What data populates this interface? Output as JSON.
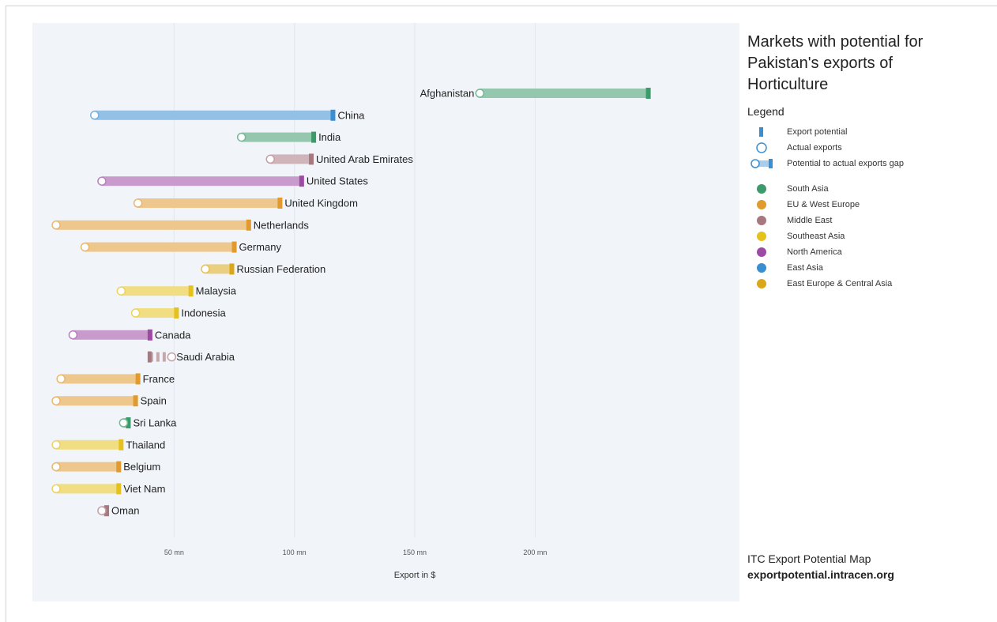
{
  "chart_data": {
    "type": "bar",
    "title": "Markets with potential for Pakistan's exports of Horticulture",
    "xlabel": "Export in $",
    "ylabel": "",
    "xlim": [
      0,
      250
    ],
    "x_ticks": [
      50,
      100,
      150,
      200
    ],
    "x_tick_labels": [
      "50 mn",
      "100 mn",
      "150 mn",
      "200 mn"
    ],
    "grid": true,
    "legend_position": "right",
    "series_fields": [
      "potential",
      "actual"
    ],
    "categories": [
      "Afghanistan",
      "China",
      "India",
      "United Arab Emirates",
      "United States",
      "United Kingdom",
      "Netherlands",
      "Germany",
      "Russian Federation",
      "Malaysia",
      "Indonesia",
      "Canada",
      "Saudi Arabia",
      "France",
      "Spain",
      "Sri Lanka",
      "Thailand",
      "Belgium",
      "Viet Nam",
      "Oman"
    ],
    "rows": [
      {
        "country": "Afghanistan",
        "region": "South Asia",
        "potential": 247,
        "actual": 177
      },
      {
        "country": "China",
        "region": "East Asia",
        "potential": 116,
        "actual": 17
      },
      {
        "country": "India",
        "region": "South Asia",
        "potential": 108,
        "actual": 78
      },
      {
        "country": "United Arab Emirates",
        "region": "Middle East",
        "potential": 107,
        "actual": 90
      },
      {
        "country": "United States",
        "region": "North America",
        "potential": 103,
        "actual": 20
      },
      {
        "country": "United Kingdom",
        "region": "EU & West Europe",
        "potential": 94,
        "actual": 35
      },
      {
        "country": "Netherlands",
        "region": "EU & West Europe",
        "potential": 81,
        "actual": 1
      },
      {
        "country": "Germany",
        "region": "EU & West Europe",
        "potential": 75,
        "actual": 13
      },
      {
        "country": "Russian Federation",
        "region": "East Europe & Central Asia",
        "potential": 74,
        "actual": 63
      },
      {
        "country": "Malaysia",
        "region": "Southeast Asia",
        "potential": 57,
        "actual": 28
      },
      {
        "country": "Indonesia",
        "region": "Southeast Asia",
        "potential": 51,
        "actual": 34
      },
      {
        "country": "Canada",
        "region": "North America",
        "potential": 40,
        "actual": 8
      },
      {
        "country": "Saudi Arabia",
        "region": "Middle East",
        "potential": 40,
        "actual": 49
      },
      {
        "country": "France",
        "region": "EU & West Europe",
        "potential": 35,
        "actual": 3
      },
      {
        "country": "Spain",
        "region": "EU & West Europe",
        "potential": 34,
        "actual": 1
      },
      {
        "country": "Sri Lanka",
        "region": "South Asia",
        "potential": 31,
        "actual": 29
      },
      {
        "country": "Thailand",
        "region": "Southeast Asia",
        "potential": 28,
        "actual": 1
      },
      {
        "country": "Belgium",
        "region": "EU & West Europe",
        "potential": 27,
        "actual": 1
      },
      {
        "country": "Viet Nam",
        "region": "Southeast Asia",
        "potential": 27,
        "actual": 1
      },
      {
        "country": "Oman",
        "region": "Middle East",
        "potential": 22,
        "actual": 20
      }
    ]
  },
  "title": "Markets with potential for\nPakistan's exports of\nHorticulture",
  "legend": {
    "heading": "Legend",
    "keys": [
      {
        "id": "potential",
        "label": "Export potential"
      },
      {
        "id": "actual",
        "label": "Actual exports"
      },
      {
        "id": "gap",
        "label": "Potential to actual exports gap"
      }
    ],
    "regions": [
      {
        "name": "South Asia",
        "color": "#3d9a6b"
      },
      {
        "name": "EU & West Europe",
        "color": "#e09a2e"
      },
      {
        "name": "Middle East",
        "color": "#a87880"
      },
      {
        "name": "Southeast Asia",
        "color": "#e5c11c"
      },
      {
        "name": "North America",
        "color": "#9c4aa3"
      },
      {
        "name": "East Asia",
        "color": "#3a8fd1"
      },
      {
        "name": "East Europe & Central Asia",
        "color": "#d9a719"
      }
    ]
  },
  "footer": {
    "line1": "ITC Export Potential Map",
    "line2": "exportpotential.intracen.org"
  }
}
